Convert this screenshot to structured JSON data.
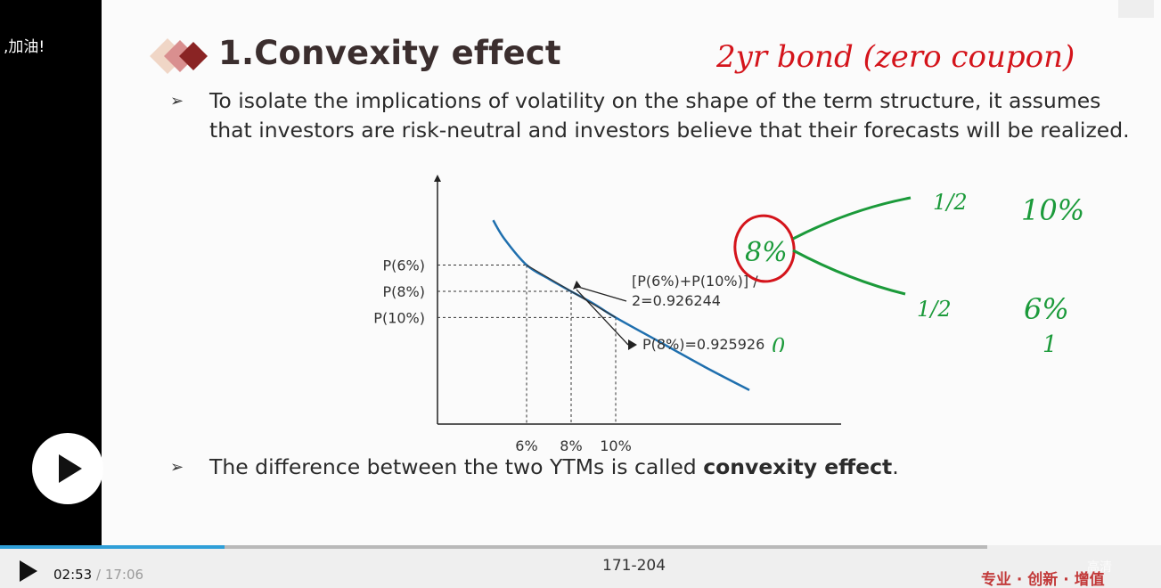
{
  "overlay": {
    "danmaku_text": ",加油!"
  },
  "slide": {
    "title": "1.Convexity effect",
    "bullet1": "To isolate the implications of volatility on the shape of the term structure, it assumes that investors are risk-neutral and investors believe that their forecasts will be realized.",
    "bullet2_prefix": "The difference between the two YTMs is called ",
    "bullet2_bold": "convexity effect",
    "bullet2_suffix": ".",
    "bullet_glyph": "➢"
  },
  "chart_data": {
    "type": "line",
    "x_tick_labels": [
      "6%",
      "8%",
      "10%"
    ],
    "y_tick_labels": [
      "P(6%)",
      "P(8%)",
      "P(10%)"
    ],
    "series": [
      {
        "x": [
          4.5,
          5,
          6,
          7,
          8,
          9,
          10,
          12,
          14,
          16
        ],
        "y": [
          0.972,
          0.96,
          0.943,
          0.934,
          0.925926,
          0.918,
          0.909,
          0.893,
          0.877,
          0.862
        ]
      }
    ],
    "chord": {
      "from_x": 6,
      "to_x": 10
    },
    "annotations": {
      "average_line1": "[P(6%)+P(10%)] /",
      "average_line2": "2=0.926244",
      "p8": "P(8%)=0.925926"
    },
    "colors": {
      "curve": "#1f6fae",
      "chord": "#333333"
    }
  },
  "handwriting": {
    "top_note": "2yr bond (zero coupon)",
    "center_rate": "8%",
    "up_prob": "1/2",
    "up_rate": "10%",
    "down_prob": "1/2",
    "down_rate": "6%",
    "time0": "0",
    "time1": "1",
    "colors": {
      "red": "#d4141b",
      "green": "#1b9a3a"
    }
  },
  "player": {
    "current_time": "02:53",
    "separator": " / ",
    "duration": "17:06",
    "progress": 0.227,
    "page_indicator": "171-204",
    "slogan": "专业 · 创新 · 增值",
    "quality_label": "高清"
  }
}
